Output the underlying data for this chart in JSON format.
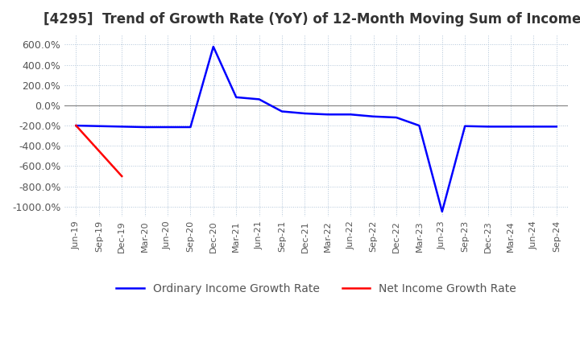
{
  "title": "[4295]  Trend of Growth Rate (YoY) of 12-Month Moving Sum of Incomes",
  "title_fontsize": 12,
  "ylim": [
    -1100,
    700
  ],
  "yticks": [
    600,
    400,
    200,
    0,
    -200,
    -400,
    -600,
    -800,
    -1000
  ],
  "ytick_labels": [
    "600.0%",
    "400.0%",
    "200.0%",
    "0.0%",
    "-200.0%",
    "-400.0%",
    "-600.0%",
    "-800.0%",
    "-1000.0%"
  ],
  "background_color": "#ffffff",
  "grid_color": "#b0c4d8",
  "ordinary_color": "#0000ff",
  "net_color": "#ff0000",
  "zero_line_color": "#888888",
  "legend_labels": [
    "Ordinary Income Growth Rate",
    "Net Income Growth Rate"
  ],
  "x_dates": [
    "Jun-19",
    "Sep-19",
    "Dec-19",
    "Mar-20",
    "Jun-20",
    "Sep-20",
    "Dec-20",
    "Mar-21",
    "Jun-21",
    "Sep-21",
    "Dec-21",
    "Mar-22",
    "Jun-22",
    "Sep-22",
    "Dec-22",
    "Mar-23",
    "Jun-23",
    "Sep-23",
    "Dec-23",
    "Mar-24",
    "Jun-24",
    "Sep-24"
  ],
  "ordinary_y": [
    -200,
    -205,
    -210,
    -215,
    -215,
    -215,
    580,
    80,
    60,
    -60,
    -80,
    -90,
    -90,
    -110,
    -120,
    -200,
    -1050,
    -205,
    -210,
    -210,
    -210,
    -210
  ],
  "net_y": [
    -200,
    -450,
    -700,
    null,
    null,
    null,
    null,
    null,
    null,
    null,
    null,
    null,
    null,
    null,
    null,
    null,
    null,
    null,
    null,
    null,
    null,
    null
  ]
}
